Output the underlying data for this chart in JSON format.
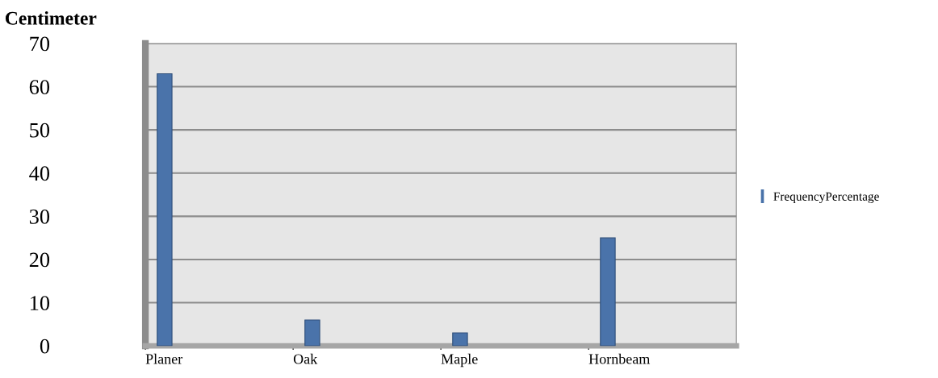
{
  "chart_data": {
    "type": "bar",
    "ylabel": "Centimeter",
    "categories": [
      "Planer",
      "Oak",
      "Maple",
      "Hornbeam"
    ],
    "series": [
      {
        "name": "FrequencyPercentage",
        "color": "#4a73aa",
        "values": [
          63,
          6,
          3,
          25
        ]
      }
    ],
    "ylim": [
      0,
      70
    ],
    "yticks": [
      0,
      10,
      20,
      30,
      40,
      50,
      60,
      70
    ],
    "grid": "y",
    "legend": "right"
  }
}
